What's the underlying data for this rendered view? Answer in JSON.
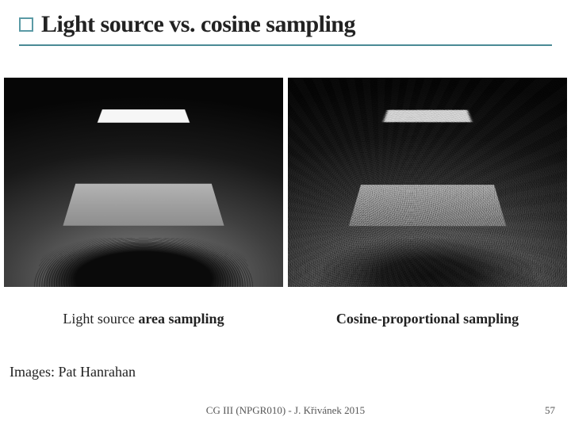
{
  "title": "Light source vs. cosine sampling",
  "accent_color": "#4a8a95",
  "renders": {
    "left": {
      "caption_prefix": "Light source ",
      "caption_bold": "area sampling",
      "background": "#000000"
    },
    "right": {
      "caption_prefix": "",
      "caption_bold": "Cosine-proportional sampling",
      "background": "#000000"
    }
  },
  "credit": "Images: Pat Hanrahan",
  "footer": "CG III (NPGR010) - J. Křivánek 2015",
  "page_number": "57"
}
